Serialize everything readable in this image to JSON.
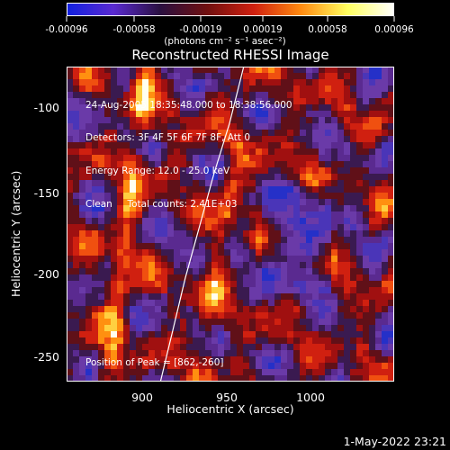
{
  "colorbar": {
    "ticks": [
      "-0.00096",
      "-0.00058",
      "-0.00019",
      "0.00019",
      "0.00058",
      "0.00096"
    ],
    "unit_label": "(photons cm⁻² s⁻¹ asec⁻²)",
    "colors": [
      "#1020e0",
      "#5a2ad0",
      "#2a1040",
      "#701010",
      "#d02010",
      "#ff8a10",
      "#ffff60",
      "#ffffff"
    ]
  },
  "chart_data": {
    "type": "heatmap",
    "title": "Reconstructed RHESSI Image",
    "xlabel": "Heliocentric X (arcsec)",
    "ylabel": "Heliocentric Y (arcsec)",
    "xlim": [
      855,
      1040
    ],
    "ylim": [
      -265,
      -82
    ],
    "x_ticks": [
      "900",
      "950",
      "1000"
    ],
    "y_ticks": [
      "-100",
      "-150",
      "-200",
      "-250"
    ],
    "annotations": [
      "24-Aug-2005 18:35:48.000 to 18:38:56.000",
      "Detectors: 3F 4F 5F 6F 7F 8F, Att 0",
      "Energy Range: 12.0 - 25.0 keV",
      "Clean     Total counts: 2.41E+03"
    ],
    "peak_label": "Position of Peak = [862,-260]",
    "peak": [
      862,
      -260
    ],
    "limb_curve": [
      [
        908,
        -265
      ],
      [
        915,
        -235
      ],
      [
        922,
        -205
      ],
      [
        930,
        -175
      ],
      [
        938,
        -145
      ],
      [
        947,
        -115
      ],
      [
        955,
        -82
      ]
    ]
  },
  "timestamp": "1-May-2022 23:21"
}
